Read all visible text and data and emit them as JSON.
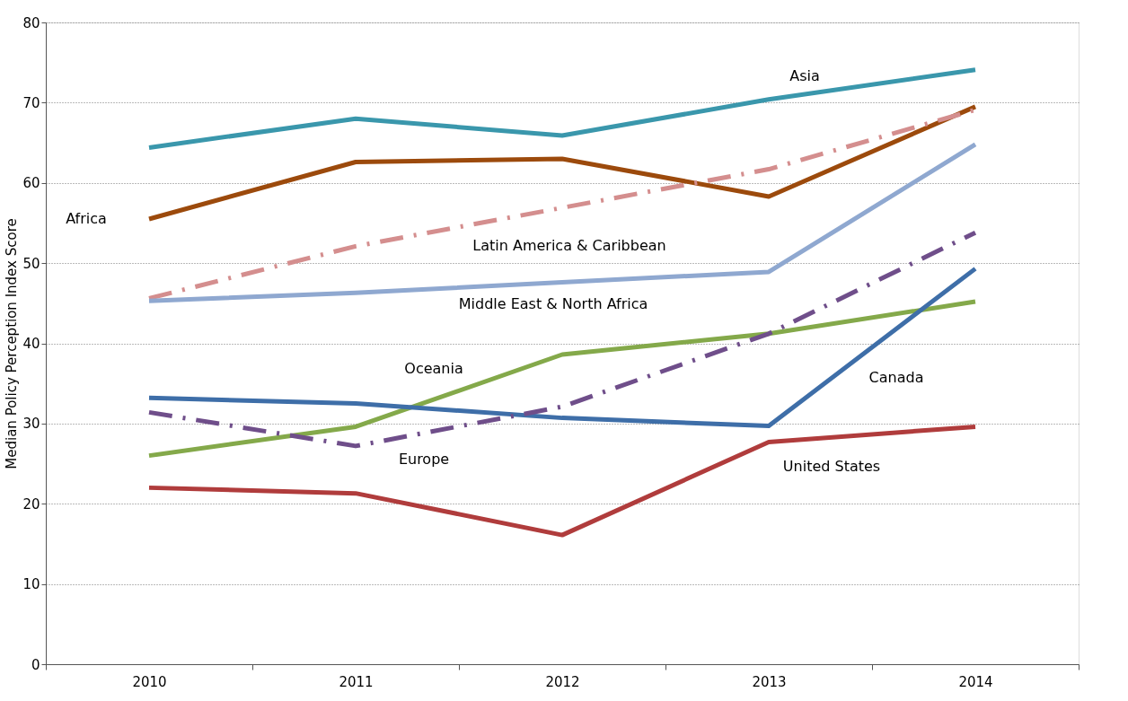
{
  "chart_data": {
    "type": "line",
    "ylabel": "Median Policy Perception Index Score",
    "categories": [
      "2010",
      "2011",
      "2012",
      "2013",
      "2014"
    ],
    "ylim": [
      0,
      80
    ],
    "yticks": [
      0,
      10,
      20,
      30,
      40,
      50,
      60,
      70,
      80
    ],
    "grid": "y",
    "marker": "none",
    "series": [
      {
        "name": "Asia",
        "color": "#3a97ac",
        "line_style": "solid",
        "values": [
          64.4,
          68.0,
          65.9,
          70.4,
          74.1
        ]
      },
      {
        "name": "Africa",
        "color": "#9c4a0c",
        "line_style": "solid",
        "values": [
          55.5,
          62.6,
          63.0,
          58.3,
          69.5
        ]
      },
      {
        "name": "Latin America & Caribbean",
        "color": "#d48e8e",
        "line_style": "dashed",
        "values": [
          45.6,
          52.1,
          56.9,
          61.7,
          69.1
        ]
      },
      {
        "name": "Middle East & North Africa",
        "color": "#8fa8d0",
        "line_style": "solid",
        "values": [
          45.3,
          46.3,
          47.6,
          48.9,
          64.8
        ]
      },
      {
        "name": "Oceania",
        "color": "#84a94a",
        "line_style": "solid",
        "values": [
          26.0,
          29.6,
          38.6,
          41.2,
          45.2
        ]
      },
      {
        "name": "Canada",
        "color": "#3e6ea8",
        "line_style": "solid",
        "values": [
          33.2,
          32.5,
          30.7,
          29.7,
          49.3
        ]
      },
      {
        "name": "Europe",
        "color": "#6f4e8a",
        "line_style": "dashed",
        "values": [
          31.4,
          27.2,
          32.1,
          41.2,
          53.8
        ]
      },
      {
        "name": "United States",
        "color": "#b03c3c",
        "line_style": "solid",
        "values": [
          22.0,
          21.3,
          16.1,
          27.7,
          29.6
        ]
      }
    ]
  }
}
